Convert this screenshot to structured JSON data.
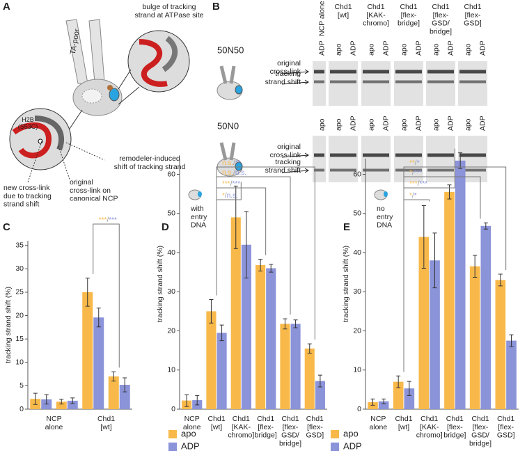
{
  "panel_labels": [
    "A",
    "B",
    "C",
    "D",
    "E"
  ],
  "schematic": {
    "ta_poor": "TA-poor",
    "bulge": "bulge of tracking\nstrand at ATPase site",
    "h2b": "H2B\n(S53C)",
    "remodeler": "remodeler-induced\nshift of tracking strand",
    "new_link": "new cross-link\ndue to tracking\nstrand shift",
    "original_link": "original\ncross-link on\ncanonical NCP"
  },
  "gel": {
    "columns": [
      "NCP alone",
      "Chd1\n[wt]",
      "Chd1\n[KAK-\nchromo]",
      "Chd1\n[flex-\nbridge]",
      "Chd1\n[flex-\nGSD/\nbridge]",
      "Chd1\n[flex-\nGSD]"
    ],
    "rows": [
      {
        "name": "50N50",
        "lanes": [
          "ADP",
          "apo",
          "ADP",
          "apo",
          "ADP",
          "apo",
          "ADP",
          "apo",
          "ADP",
          "apo",
          "ADP"
        ],
        "band_labels": [
          "original\ncross-link",
          "tracking\nstrand shift"
        ]
      },
      {
        "name": "50N0",
        "lanes": [
          "apo",
          "apo",
          "ADP",
          "apo",
          "ADP",
          "apo",
          "ADP",
          "apo",
          "ADP",
          "apo",
          "ADP"
        ],
        "band_labels": [
          "original\ncross-link",
          "tracking\nstrand shift"
        ]
      }
    ]
  },
  "chart_data": [
    {
      "type": "bar",
      "ylabel": "tracking strand shift (%)",
      "categories": [
        "NCP\nalone",
        null,
        "Chd1\n[wt]",
        null
      ],
      "series": [
        {
          "name": "apo",
          "color": "#f8b94a",
          "values": [
            2.2,
            1.6,
            25,
            7
          ],
          "errors": [
            1.2,
            0.5,
            3,
            1
          ]
        },
        {
          "name": "ADP",
          "color": "#8b93d9",
          "values": [
            2.1,
            1.8,
            19.6,
            5.2
          ],
          "errors": [
            1,
            0.6,
            2,
            1.5
          ]
        }
      ],
      "ylim": [
        0,
        36
      ],
      "yticks": [
        0,
        5,
        10,
        15,
        20,
        25,
        30,
        35
      ],
      "grid": false,
      "legend": "lower right",
      "annotations": [
        [
          "***",
          "/",
          "***"
        ]
      ]
    },
    {
      "type": "bar",
      "ylabel": "tracking strand shift (%)",
      "categories": [
        "NCP\nalone",
        "Chd1\n[wt]",
        "Chd1\n[KAK-\nchromo]",
        "Chd1\n[flex-\nbridge]",
        "Chd1\n[flex-\nGSD/\nbridge]",
        "Chd1\n[flex-\nGSD]"
      ],
      "series": [
        {
          "name": "apo",
          "color": "#f8b94a",
          "values": [
            2.2,
            25,
            49,
            36.8,
            21.8,
            15.5
          ],
          "errors": [
            1.5,
            3,
            8,
            1.5,
            1.3,
            1.2
          ]
        },
        {
          "name": "ADP",
          "color": "#8b93d9",
          "values": [
            2.3,
            19.5,
            42,
            36,
            21.8,
            7.2
          ],
          "errors": [
            1.2,
            2,
            8.5,
            1,
            1,
            1.5
          ]
        }
      ],
      "ylim": [
        0,
        64
      ],
      "yticks": [
        0,
        10,
        20,
        30,
        40,
        50,
        60
      ],
      "grid": false,
      "inset": "with\nentry\nDNA",
      "annotations": [
        [
          "*",
          "/",
          "n.s."
        ],
        [
          "***",
          "/",
          "***"
        ],
        [
          "n.s.",
          "/",
          "n.s."
        ],
        [
          "n.s.",
          "/",
          "**"
        ]
      ]
    },
    {
      "type": "bar",
      "ylabel": "tracking strand shift (%)",
      "categories": [
        "NCP\nalone",
        "Chd1\n[wt]",
        "Chd1\n[KAK-\nchromo]",
        "Chd1\n[flex-\nbridge]",
        "Chd1\n[flex-\nGSD/\nbridge]",
        "Chd1\n[flex-\nGSD]"
      ],
      "series": [
        {
          "name": "apo",
          "color": "#f8b94a",
          "values": [
            1.8,
            7,
            44,
            55.5,
            36.5,
            33
          ],
          "errors": [
            0.8,
            1.5,
            8,
            1.8,
            2.8,
            1.5
          ]
        },
        {
          "name": "ADP",
          "color": "#8b93d9",
          "values": [
            2,
            5.3,
            38,
            63.5,
            46.8,
            17.5
          ],
          "errors": [
            0.6,
            1.8,
            7,
            2,
            0.8,
            1.5
          ]
        }
      ],
      "ylim": [
        0,
        64
      ],
      "yticks": [
        0,
        10,
        20,
        30,
        40,
        50,
        60
      ],
      "grid": false,
      "legend": "lower left",
      "inset": "no\nentry\nDNA",
      "annotations": [
        [
          "*",
          "/",
          "*"
        ],
        [
          "***",
          "/",
          "***"
        ],
        [
          "*",
          "/",
          "***"
        ],
        [
          "**",
          "/",
          "*"
        ]
      ]
    }
  ]
}
